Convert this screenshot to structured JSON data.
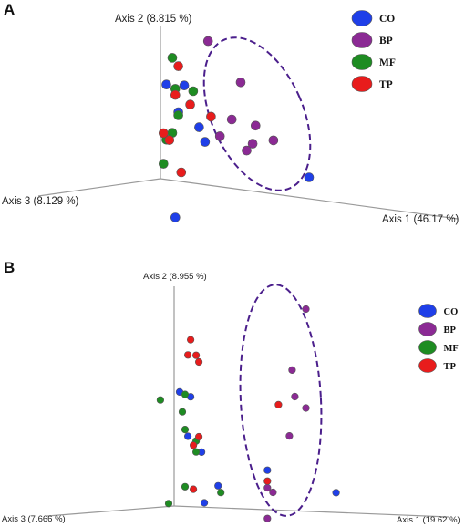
{
  "chart_data": [
    {
      "type": "scatter",
      "panel_label": "A",
      "axes": {
        "axis1": "Axis 1 (46.17 %)",
        "axis2": "Axis 2 (8.815 %)",
        "axis3": "Axis 3 (8.129 %)"
      },
      "legend": [
        {
          "label": "CO",
          "color": "#1f3fe8"
        },
        {
          "label": "BP",
          "color": "#8b2a94"
        },
        {
          "label": "MF",
          "color": "#1e8c22"
        },
        {
          "label": "TP",
          "color": "#e81c1c"
        }
      ],
      "series": [
        {
          "name": "CO",
          "points": [
            [
              0.02,
              0.62
            ],
            [
              0.08,
              0.63
            ],
            [
              0.06,
              0.45
            ],
            [
              0.13,
              0.37
            ],
            [
              0.15,
              0.28
            ],
            [
              0.05,
              -0.24
            ],
            [
              0.5,
              0.14
            ]
          ]
        },
        {
          "name": "BP",
          "points": [
            [
              0.16,
              0.94
            ],
            [
              0.27,
              0.7
            ],
            [
              0.24,
              0.45
            ],
            [
              0.2,
              0.33
            ],
            [
              0.32,
              0.43
            ],
            [
              0.31,
              0.31
            ],
            [
              0.29,
              0.26
            ],
            [
              0.38,
              0.35
            ]
          ]
        },
        {
          "name": "MF",
          "points": [
            [
              0.04,
              0.8
            ],
            [
              0.05,
              0.6
            ],
            [
              0.06,
              0.43
            ],
            [
              0.11,
              0.6
            ],
            [
              0.04,
              0.31
            ],
            [
              0.02,
              0.26
            ],
            [
              0.01,
              0.1
            ]
          ]
        },
        {
          "name": "TP",
          "points": [
            [
              0.06,
              0.75
            ],
            [
              0.05,
              0.56
            ],
            [
              0.1,
              0.51
            ],
            [
              0.17,
              0.45
            ],
            [
              0.01,
              0.3
            ],
            [
              0.03,
              0.26
            ],
            [
              0.07,
              0.06
            ]
          ]
        }
      ]
    },
    {
      "type": "scatter",
      "panel_label": "B",
      "axes": {
        "axis1": "Axis 1 (19.62 %)",
        "axis2": "Axis 2 (8.955 %)",
        "axis3": "Axis 3 (7.666 %)"
      },
      "legend": [
        {
          "label": "CO",
          "color": "#1f3fe8"
        },
        {
          "label": "BP",
          "color": "#8b2a94"
        },
        {
          "label": "MF",
          "color": "#1e8c22"
        },
        {
          "label": "TP",
          "color": "#e81c1c"
        }
      ],
      "series": [
        {
          "name": "CO",
          "points": [
            [
              0.02,
              0.52
            ],
            [
              0.06,
              0.5
            ],
            [
              0.05,
              0.32
            ],
            [
              0.1,
              0.25
            ],
            [
              0.34,
              0.18
            ],
            [
              0.16,
              0.1
            ],
            [
              0.11,
              0.02
            ],
            [
              0.59,
              0.09
            ]
          ]
        },
        {
          "name": "BP",
          "points": [
            [
              0.48,
              0.92
            ],
            [
              0.43,
              0.64
            ],
            [
              0.44,
              0.52
            ],
            [
              0.48,
              0.47
            ],
            [
              0.42,
              0.34
            ],
            [
              0.34,
              0.1
            ],
            [
              0.36,
              0.08
            ],
            [
              0.34,
              -0.04
            ]
          ]
        },
        {
          "name": "MF",
          "points": [
            [
              -0.05,
              0.48
            ],
            [
              0.04,
              0.51
            ],
            [
              0.03,
              0.43
            ],
            [
              0.04,
              0.35
            ],
            [
              0.08,
              0.3
            ],
            [
              0.08,
              0.25
            ],
            [
              0.17,
              0.07
            ],
            [
              0.04,
              0.09
            ],
            [
              -0.02,
              0.01
            ]
          ]
        },
        {
          "name": "TP",
          "points": [
            [
              0.06,
              0.76
            ],
            [
              0.05,
              0.69
            ],
            [
              0.08,
              0.69
            ],
            [
              0.09,
              0.66
            ],
            [
              0.38,
              0.48
            ],
            [
              0.09,
              0.32
            ],
            [
              0.07,
              0.28
            ],
            [
              0.34,
              0.13
            ],
            [
              0.07,
              0.08
            ]
          ]
        }
      ]
    }
  ]
}
